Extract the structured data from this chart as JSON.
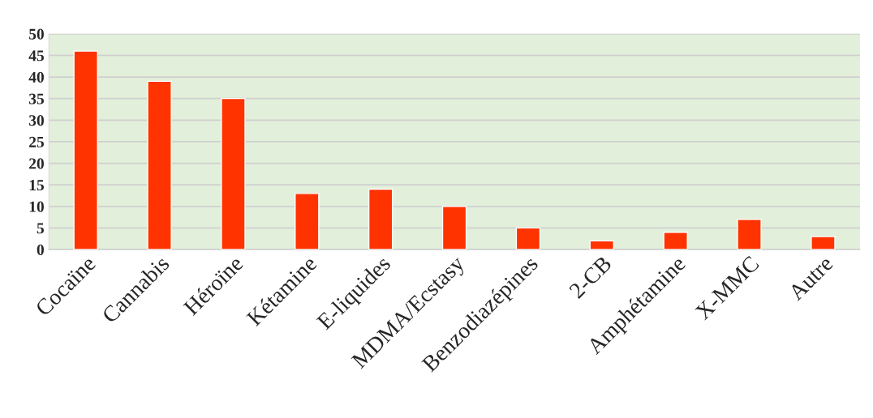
{
  "chart_data": {
    "type": "bar",
    "categories": [
      "Cocaïne",
      "Cannabis",
      "Héroïne",
      "Kétamine",
      "E-liquides",
      "MDMA/Ecstasy",
      "Benzodiazépines",
      "2-CB",
      "Amphétamine",
      "X-MMC",
      "Autre"
    ],
    "values": [
      46,
      39,
      35,
      13,
      14,
      10,
      5,
      2,
      4,
      7,
      3
    ],
    "color": "#ff3300",
    "ylim": [
      0,
      50
    ],
    "yticks": [
      0,
      5,
      10,
      15,
      20,
      25,
      30,
      35,
      40,
      45,
      50
    ],
    "grid": "y"
  }
}
